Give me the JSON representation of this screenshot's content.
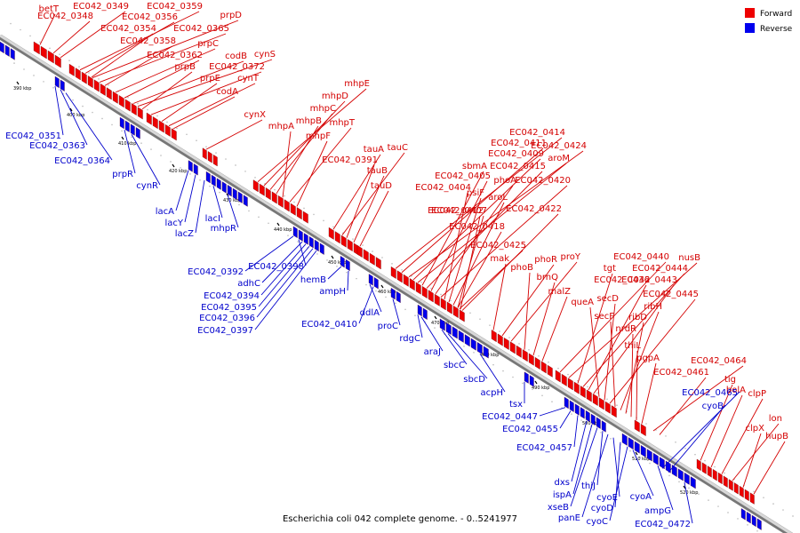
{
  "caption": "Escherichia coli 042 complete genome. - 0..5241977",
  "legend": {
    "forward": {
      "label": "Forward",
      "color": "#ee0000"
    },
    "reverse": {
      "label": "Reverse",
      "color": "#0000ee"
    }
  },
  "ticks": [
    "390 kbp",
    "400 kbp",
    "410 kbp",
    "420 kbp",
    "430 kbp",
    "440 kbp",
    "450 kbp",
    "460 kbp",
    "470 kbp",
    "480 kbp",
    "490 kbp",
    "500 kbp",
    "510 kbp",
    "520 kbp"
  ],
  "forward_labels": [
    "betT",
    "EC042_0348",
    "EC042_0349",
    "EC042_0359",
    "EC042_0356",
    "prpD",
    "EC042_0354",
    "EC042_0365",
    "EC042_0358",
    "prpC",
    "EC042_0362",
    "codB",
    "cynS",
    "prpB",
    "EC042_0372",
    "prpE",
    "cynT",
    "codA",
    "cynX",
    "mhpE",
    "mhpD",
    "mhpC",
    "mhpB",
    "mhpA",
    "mhpT",
    "mhpF",
    "tauA",
    "tauC",
    "EC042_0391",
    "tauB",
    "tauD",
    "EC042_0414",
    "EC042_0411",
    "EC042_0424",
    "EC042_0409",
    "aroM",
    "sbmA",
    "EC042_0415",
    "EC042_0405",
    "phoA",
    "EC042_0420",
    "EC042_0404",
    "psiF",
    "aroL",
    "EC042_0407",
    "EC042_0412",
    "EC042_0422",
    "EC042_0418",
    "EC042_0425",
    "mak",
    "phoR",
    "proY",
    "phoB",
    "brnQ",
    "malZ",
    "EC042_0440",
    "nusB",
    "tgt",
    "EC042_0444",
    "EC042_0436",
    "EC042_0443",
    "queA",
    "secD",
    "EC042_0445",
    "secF",
    "ribH",
    "ribD",
    "nrdR",
    "thiL",
    "pgpA",
    "EC042_0464",
    "EC042_0461",
    "tig",
    "bolA",
    "clpP",
    "lon",
    "clpX",
    "hupB"
  ],
  "reverse_labels": [
    "EC042_0351",
    "EC042_0363",
    "EC042_0364",
    "prpR",
    "cynR",
    "lacA",
    "lacY",
    "lacZ",
    "lacI",
    "mhpR",
    "EC042_0392",
    "EC042_0398",
    "adhC",
    "EC042_0394",
    "EC042_0395",
    "EC042_0396",
    "EC042_0397",
    "hemB",
    "ampH",
    "ddlA",
    "EC042_0410",
    "proC",
    "rdgC",
    "araJ",
    "sbcC",
    "sbcD",
    "acpH",
    "tsx",
    "EC042_0447",
    "EC042_0455",
    "EC042_0457",
    "dxs",
    "ispA",
    "xseB",
    "thiJ",
    "panE",
    "cyoE",
    "cyoD",
    "cyoC",
    "cyoA",
    "ampG",
    "EC042_0472",
    "EC042_0465",
    "cyoB"
  ]
}
